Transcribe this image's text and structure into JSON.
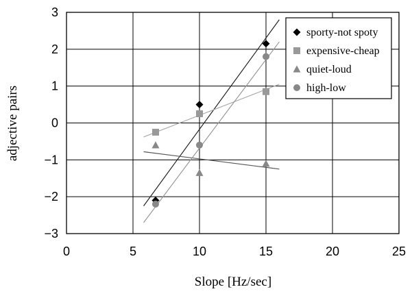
{
  "chart_data": {
    "type": "scatter",
    "title": "",
    "xlabel": "Slope [Hz/sec]",
    "ylabel": "adjective pairs",
    "xlim": [
      0,
      25
    ],
    "ylim": [
      -3,
      3
    ],
    "x_ticks": [
      0,
      5,
      10,
      15,
      20,
      25
    ],
    "y_ticks": [
      -3,
      -2,
      -1,
      0,
      1,
      2,
      3
    ],
    "x_tick_labels": [
      "0",
      "5",
      "10",
      "15",
      "20",
      "25"
    ],
    "y_tick_labels": [
      "−3",
      "−2",
      "−1",
      "0",
      "1",
      "2",
      "3"
    ],
    "grid": true,
    "legend_position": "top-right",
    "series": [
      {
        "name": "sporty-not spoty",
        "marker": "diamond",
        "color": "#000000",
        "x": [
          6.7,
          10,
          15
        ],
        "y": [
          -2.1,
          0.5,
          2.15
        ],
        "trend": {
          "x": [
            5.8,
            16
          ],
          "y": [
            -2.25,
            2.8
          ],
          "color": "#222222"
        }
      },
      {
        "name": "expensive-cheap",
        "marker": "square",
        "color": "#999999",
        "x": [
          6.7,
          10,
          15
        ],
        "y": [
          -0.25,
          0.25,
          0.85
        ],
        "trend": {
          "x": [
            5.8,
            16
          ],
          "y": [
            -0.38,
            1.05
          ],
          "color": "#aaaaaa"
        }
      },
      {
        "name": "quiet-loud",
        "marker": "triangle",
        "color": "#888888",
        "x": [
          6.7,
          10,
          15
        ],
        "y": [
          -0.6,
          -1.35,
          -1.1
        ],
        "trend": {
          "x": [
            5.8,
            16
          ],
          "y": [
            -0.78,
            -1.25
          ],
          "color": "#555555"
        }
      },
      {
        "name": "high-low",
        "marker": "circle",
        "color": "#888888",
        "x": [
          6.7,
          10,
          15
        ],
        "y": [
          -2.2,
          -0.6,
          1.8
        ],
        "trend": {
          "x": [
            5.8,
            16
          ],
          "y": [
            -2.7,
            2.2
          ],
          "color": "#999999"
        }
      }
    ]
  }
}
